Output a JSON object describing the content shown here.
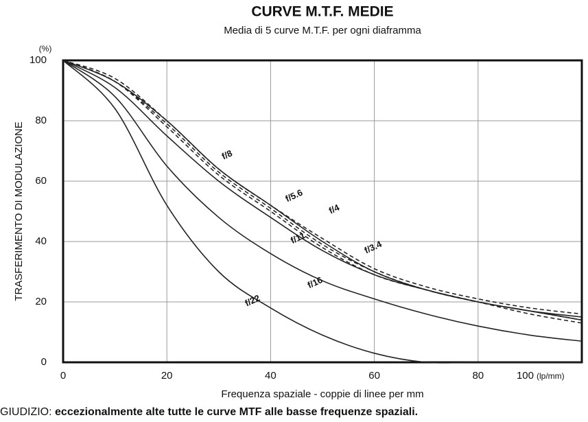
{
  "chart_data": {
    "type": "line",
    "title": "CURVE M.T.F. MEDIE",
    "subtitle": "Media di 5 curve M.T.F. per ogni diaframma",
    "x_label": "Frequenza spaziale - coppie di linee per mm",
    "x_unit": "(lp/mm)",
    "y_label": "TRASFERIMENTO DI MODULAZIONE",
    "y_unit": "(%)",
    "footer_label": "GIUDIZIO:",
    "footer_text": "eccezionalmente alte tutte le curve MTF alle basse frequenze spaziali.",
    "x": [
      0,
      10,
      20,
      30,
      40,
      50,
      60,
      70,
      80,
      90,
      100
    ],
    "series": [
      {
        "name": "f/8",
        "color": "#222222",
        "style": "solid",
        "values": [
          100,
          93,
          80,
          64,
          52,
          40,
          30,
          24,
          20,
          17,
          15
        ]
      },
      {
        "name": "f/5.6",
        "color": "#222222",
        "style": "dashed",
        "values": [
          100,
          93,
          79,
          63,
          51,
          39,
          30,
          24,
          20,
          17,
          14
        ]
      },
      {
        "name": "f/4",
        "color": "#222222",
        "style": "dashed",
        "values": [
          100,
          94,
          80,
          64,
          52,
          41,
          31,
          25,
          21,
          18,
          16
        ]
      },
      {
        "name": "f/3.4",
        "color": "#222222",
        "style": "dashed",
        "values": [
          100,
          93,
          78,
          62,
          50,
          38,
          29,
          24,
          20,
          16,
          13
        ]
      },
      {
        "name": "f/11",
        "color": "#222222",
        "style": "solid",
        "values": [
          100,
          91,
          75,
          60,
          48,
          37,
          29,
          24,
          20,
          17,
          14
        ]
      },
      {
        "name": "f/16",
        "color": "#222222",
        "style": "solid",
        "values": [
          100,
          88,
          65,
          48,
          36,
          27,
          21,
          16,
          12,
          9,
          7
        ]
      },
      {
        "name": "f/22",
        "color": "#222222",
        "style": "solid",
        "values": [
          100,
          84,
          52,
          30,
          18,
          9,
          3,
          0,
          0,
          0,
          0
        ]
      }
    ],
    "xlim": [
      0,
      100
    ],
    "xticks": [
      0,
      20,
      40,
      60,
      80,
      100
    ],
    "ylim": [
      0,
      100
    ],
    "yticks": [
      0,
      20,
      40,
      60,
      80,
      100
    ],
    "grid": true
  }
}
